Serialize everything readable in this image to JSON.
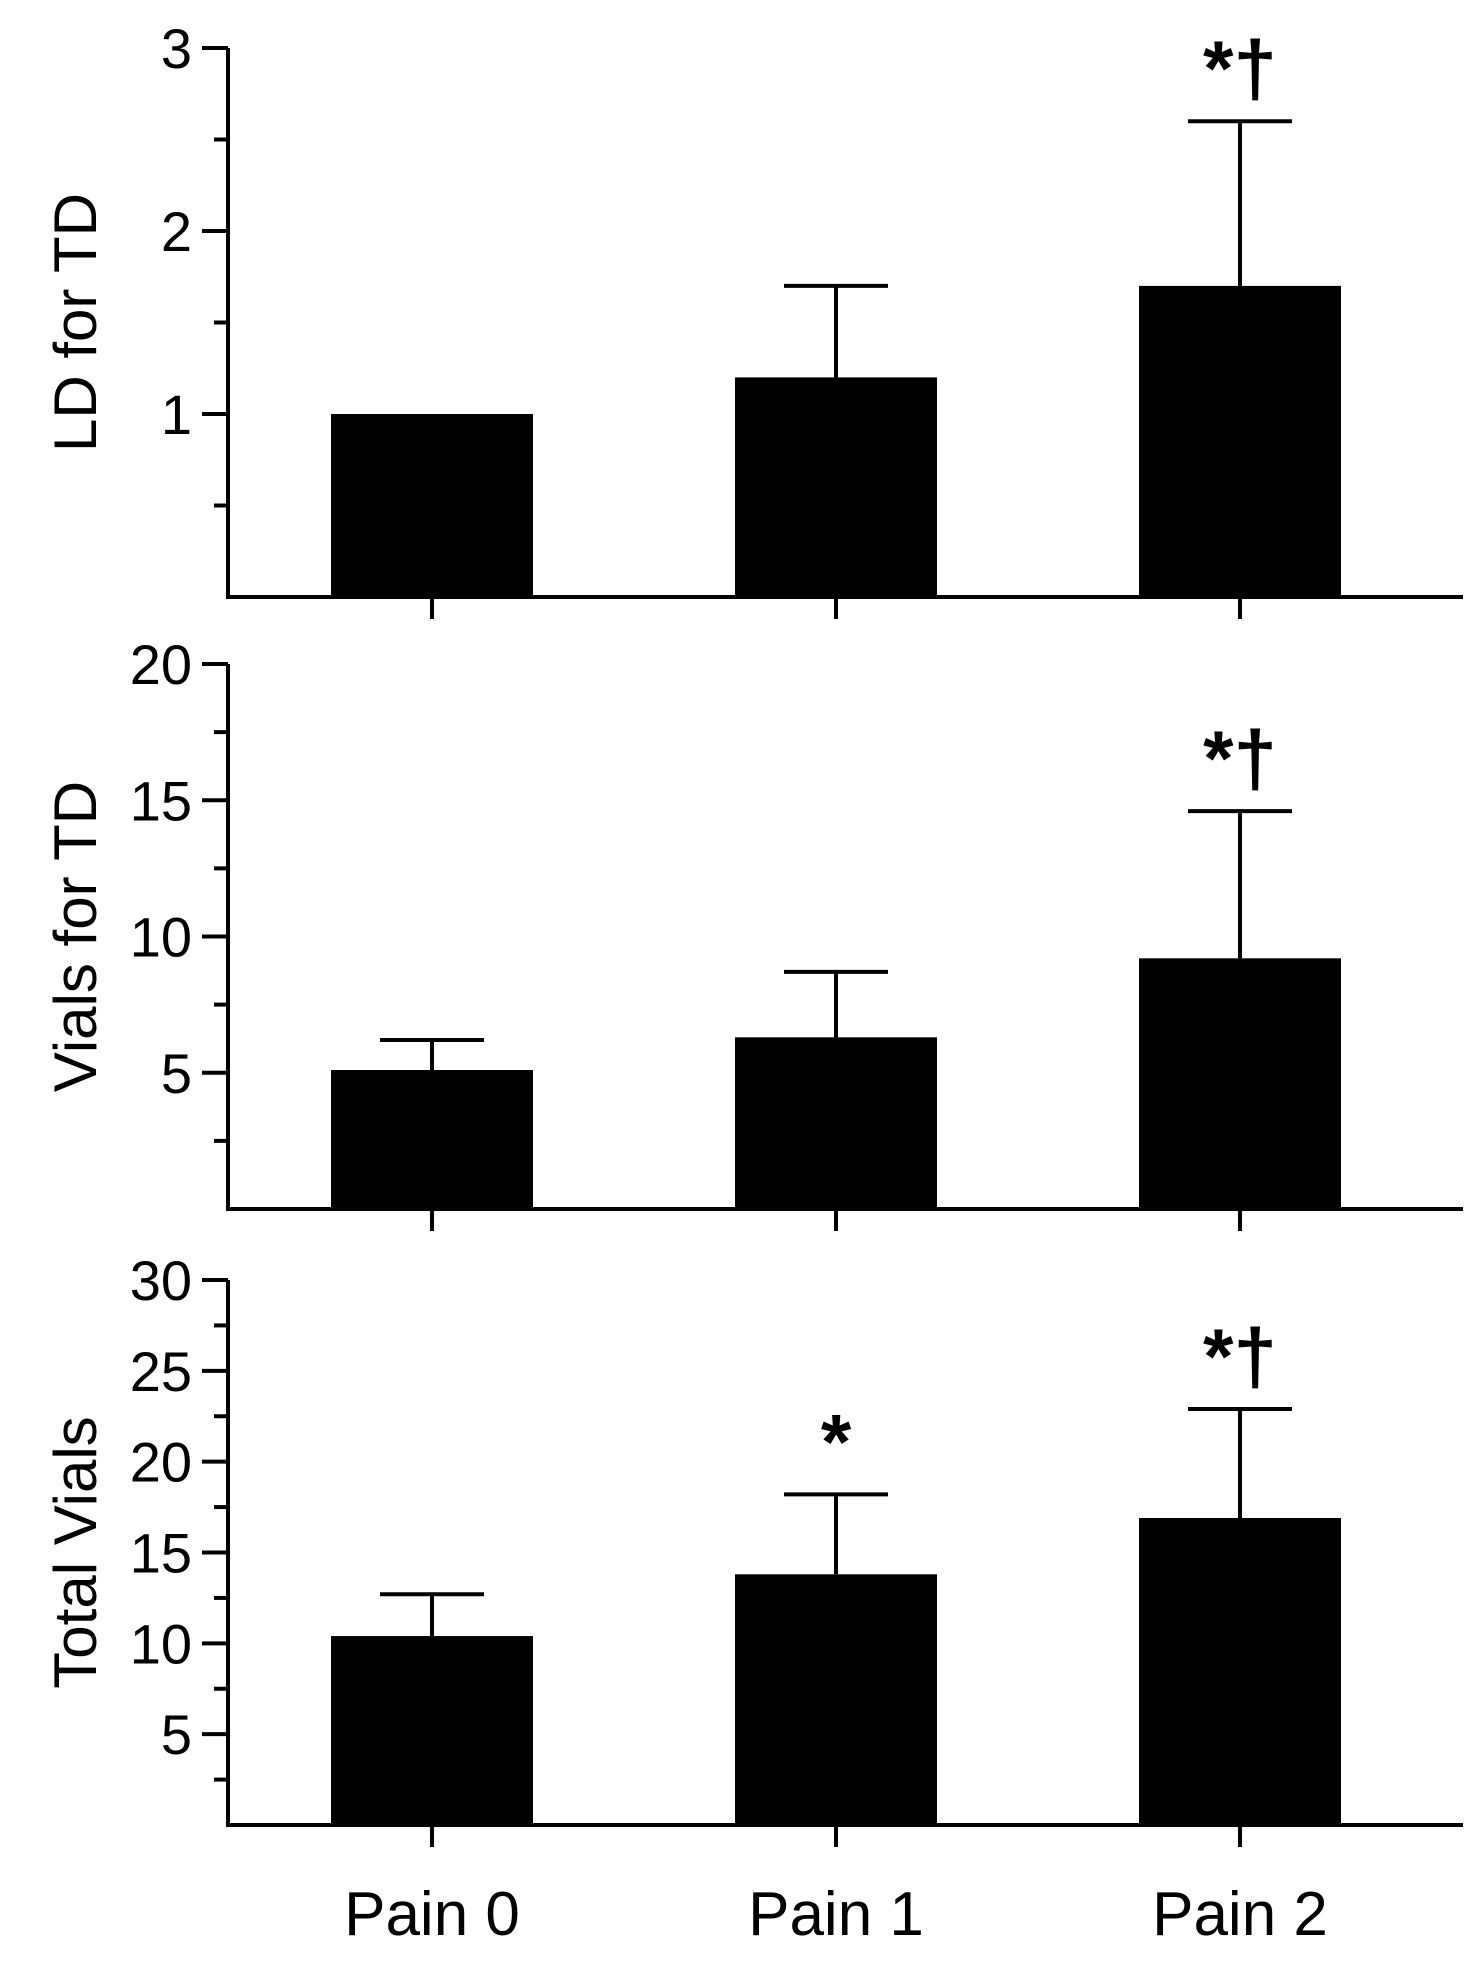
{
  "chart_data": [
    {
      "type": "bar",
      "categories": [
        "Pain 0",
        "Pain 1",
        "Pain 2"
      ],
      "values": [
        1.0,
        1.2,
        1.7
      ],
      "errors": [
        0.0,
        0.5,
        0.9
      ],
      "annotations": [
        "",
        "",
        "*†"
      ],
      "ylabel": "LD for TD",
      "ylim": [
        0,
        3
      ],
      "yticks": [
        1,
        2,
        3
      ],
      "yminor": [
        0.5,
        1.5,
        2.5
      ],
      "show_category_labels": false
    },
    {
      "type": "bar",
      "categories": [
        "Pain 0",
        "Pain 1",
        "Pain 2"
      ],
      "values": [
        5.1,
        6.3,
        9.2
      ],
      "errors": [
        1.1,
        2.4,
        5.4
      ],
      "annotations": [
        "",
        "",
        "*†"
      ],
      "ylabel": "Vials for TD",
      "ylim": [
        0,
        20
      ],
      "yticks": [
        5,
        10,
        15,
        20
      ],
      "yminor": [
        2.5,
        7.5,
        12.5,
        17.5
      ],
      "show_category_labels": false
    },
    {
      "type": "bar",
      "categories": [
        "Pain 0",
        "Pain 1",
        "Pain 2"
      ],
      "values": [
        10.4,
        13.8,
        16.9
      ],
      "errors": [
        2.3,
        4.4,
        6.0
      ],
      "annotations": [
        "",
        "*",
        "*†"
      ],
      "ylabel": "Total Vials",
      "ylim": [
        0,
        30
      ],
      "yticks": [
        5,
        10,
        15,
        20,
        25,
        30
      ],
      "yminor": [
        2.5,
        7.5,
        12.5,
        17.5,
        22.5,
        27.5
      ],
      "show_category_labels": true
    }
  ],
  "colors": {
    "bar": "#000000",
    "axis": "#000000",
    "background": "#ffffff"
  }
}
